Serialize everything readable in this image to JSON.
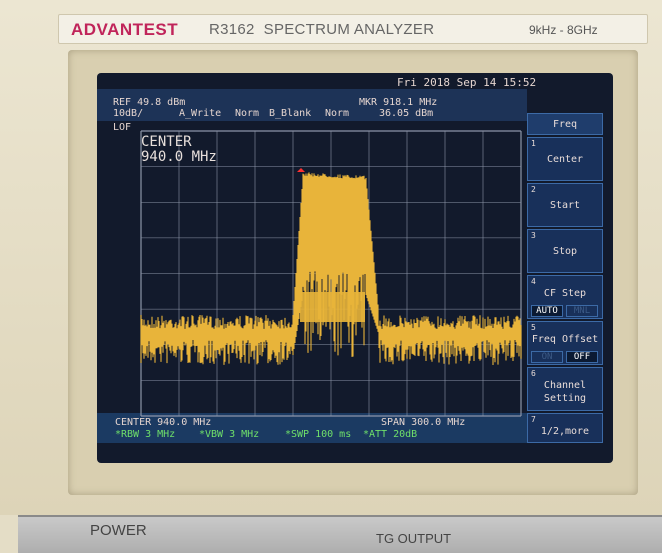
{
  "device": {
    "brand": "ADVANTEST",
    "model": "R3162  SPECTRUM ANALYZER",
    "range": "9kHz - 8GHz",
    "power_label": "POWER",
    "tg_output_label": "TG OUTPUT"
  },
  "status": {
    "datetime": "Fri 2018 Sep 14 15:52",
    "ref": "REF 49.8 dBm",
    "scale": "10dB/",
    "trace_a": "A_Write",
    "trace_a_mode": "Norm",
    "trace_b": "B_Blank",
    "trace_b_mode": "Norm",
    "marker_freq": "MKR 918.1 MHz",
    "marker_level": "36.05 dBm",
    "lof": "LOF"
  },
  "entry": {
    "label": "CENTER",
    "value": "940.0 MHz"
  },
  "footer": {
    "center": "CENTER 940.0 MHz",
    "span": "SPAN 300.0 MHz",
    "rbw": "*RBW 3 MHz",
    "vbw": "*VBW 3 MHz",
    "swp": "*SWP 100 ms",
    "att": "*ATT 20dB"
  },
  "softkeys": {
    "title": "Freq",
    "items": [
      {
        "num": "1",
        "label": "Center"
      },
      {
        "num": "2",
        "label": "Start"
      },
      {
        "num": "3",
        "label": "Stop"
      },
      {
        "num": "4",
        "label": "CF Step",
        "opt_a": "AUTO",
        "opt_b": "MNL",
        "selected": "AUTO"
      },
      {
        "num": "5",
        "label": "Freq Offset",
        "opt_a": "ON",
        "opt_b": "OFF",
        "selected": "OFF"
      },
      {
        "num": "6",
        "label": "Channel\nSetting"
      },
      {
        "num": "7",
        "label": "1/2,more"
      }
    ]
  },
  "colors": {
    "trace": "#e8b43a",
    "grid": "#8c95a8",
    "screen_bg": "#121a2c",
    "accent": "#c0245a"
  }
}
